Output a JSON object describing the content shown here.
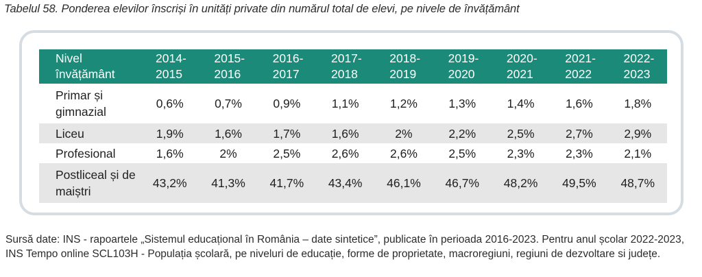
{
  "caption": "Tabelul 58. Ponderea elevilor înscriși în unități private din numărul total de elevi, pe nivele de învățământ",
  "table": {
    "header_label": "Nivel învățământ",
    "years": [
      "2014-2015",
      "2015-2016",
      "2016-2017",
      "2017-2018",
      "2018-2019",
      "2019-2020",
      "2020-2021",
      "2021-2022",
      "2022-2023"
    ],
    "rows": [
      {
        "label": "Primar și gimnazial",
        "values": [
          "0,6%",
          "0,7%",
          "0,9%",
          "1,1%",
          "1,2%",
          "1,3%",
          "1,4%",
          "1,6%",
          "1,8%"
        ]
      },
      {
        "label": "Liceu",
        "values": [
          "1,9%",
          "1,6%",
          "1,7%",
          "1,6%",
          "2%",
          "2,2%",
          "2,5%",
          "2,7%",
          "2,9%"
        ]
      },
      {
        "label": "Profesional",
        "values": [
          "1,6%",
          "2%",
          "2,5%",
          "2,6%",
          "2,6%",
          "2,5%",
          "2,3%",
          "2,3%",
          "2,1%"
        ]
      },
      {
        "label": "Postliceal și de maiștri",
        "values": [
          "43,2%",
          "41,3%",
          "41,7%",
          "43,4%",
          "46,1%",
          "46,7%",
          "48,2%",
          "49,5%",
          "48,7%"
        ]
      }
    ]
  },
  "source": "Sursă date: INS - rapoartele „Sistemul educațional în România – date sintetice”, publicate în perioada 2016-2023. Pentru anul școlar 2022-2023, INS Tempo online SCL103H - Populația școlară, pe niveluri de educație, forme de proprietate, macroregiuni, regiuni de dezvoltare si județe.",
  "colors": {
    "header_bg": "#1c8a78",
    "alt_row_bg": "#e6e6e6",
    "frame_border": "#d5dde3"
  }
}
